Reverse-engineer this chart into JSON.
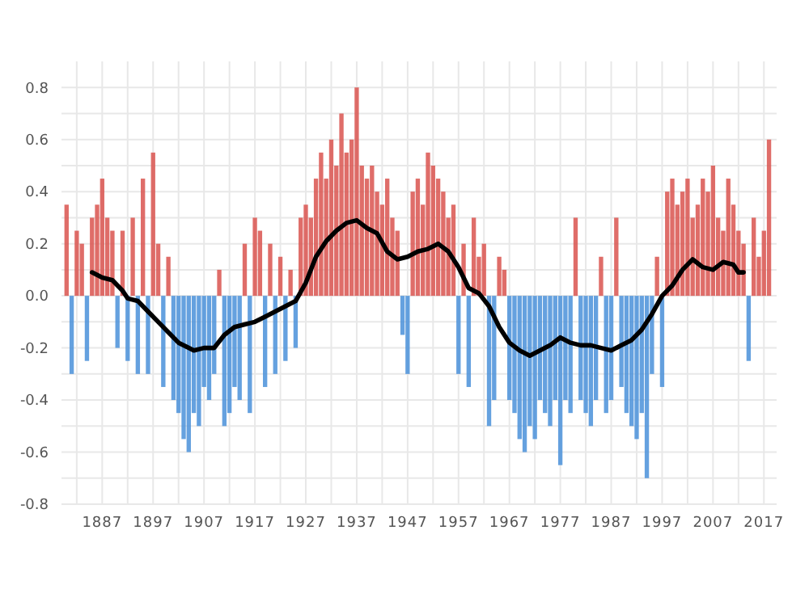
{
  "chart_data": {
    "type": "bar",
    "xlim": [
      1879,
      2019.5
    ],
    "ylim": [
      -0.8,
      0.9
    ],
    "xticks": [
      {
        "value": 1882,
        "label": null
      },
      1887,
      {
        "value": 1892,
        "label": null
      },
      1897,
      {
        "value": 1902,
        "label": null
      },
      1907,
      {
        "value": 1912,
        "label": null
      },
      1917,
      {
        "value": 1922,
        "label": null
      },
      1927,
      {
        "value": 1932,
        "label": null
      },
      1937,
      {
        "value": 1942,
        "label": null
      },
      1947,
      {
        "value": 1952,
        "label": null
      },
      1957,
      {
        "value": 1962,
        "label": null
      },
      1967,
      {
        "value": 1972,
        "label": null
      },
      1977,
      {
        "value": 1982,
        "label": null
      },
      1987,
      {
        "value": 1992,
        "label": null
      },
      1997,
      {
        "value": 2002,
        "label": null
      },
      2007,
      {
        "value": 2012,
        "label": null
      },
      2017
    ],
    "yticks": [
      -0.8,
      {
        "value": -0.7,
        "label": null
      },
      -0.6,
      {
        "value": -0.5,
        "label": null
      },
      -0.4,
      {
        "value": -0.3,
        "label": null
      },
      -0.2,
      {
        "value": -0.1,
        "label": null
      },
      {
        "value": 0,
        "label": "0.0"
      },
      {
        "value": 0.1,
        "label": null
      },
      0.2,
      {
        "value": 0.3,
        "label": null
      },
      0.4,
      {
        "value": 0.5,
        "label": null
      },
      0.6,
      {
        "value": 0.7,
        "label": null
      },
      0.8
    ],
    "grid": true,
    "series": [
      {
        "x": [
          1880,
          1881,
          1882,
          1883,
          1884,
          1885,
          1886,
          1887,
          1888,
          1889,
          1890,
          1891,
          1892,
          1893,
          1894,
          1895,
          1896,
          1897,
          1898,
          1899,
          1900,
          1901,
          1902,
          1903,
          1904,
          1905,
          1906,
          1907,
          1908,
          1909,
          1910,
          1911,
          1912,
          1913,
          1914,
          1915,
          1916,
          1917,
          1918,
          1919,
          1920,
          1921,
          1922,
          1923,
          1924,
          1925,
          1926,
          1927,
          1928,
          1929,
          1930,
          1931,
          1932,
          1933,
          1934,
          1935,
          1936,
          1937,
          1938,
          1939,
          1940,
          1941,
          1942,
          1943,
          1944,
          1945,
          1946,
          1947,
          1948,
          1949,
          1950,
          1951,
          1952,
          1953,
          1954,
          1955,
          1956,
          1957,
          1958,
          1959,
          1960,
          1961,
          1962,
          1963,
          1964,
          1965,
          1966,
          1967,
          1968,
          1969,
          1970,
          1971,
          1972,
          1973,
          1974,
          1975,
          1976,
          1977,
          1978,
          1979,
          1980,
          1981,
          1982,
          1983,
          1984,
          1985,
          1986,
          1987,
          1988,
          1989,
          1990,
          1991,
          1992,
          1993,
          1994,
          1995,
          1996,
          1997,
          1998,
          1999,
          2000,
          2001,
          2002,
          2003,
          2004,
          2005,
          2006,
          2007,
          2008,
          2009,
          2010,
          2011,
          2012,
          2013,
          2014,
          2015,
          2016,
          2017,
          2018
        ],
        "values": [
          0.35,
          -0.3,
          0.25,
          0.2,
          -0.25,
          0.3,
          0.35,
          0.45,
          0.3,
          0.25,
          -0.2,
          0.25,
          -0.25,
          0.3,
          -0.3,
          0.45,
          -0.3,
          0.55,
          0.2,
          -0.35,
          0.15,
          -0.4,
          -0.45,
          -0.55,
          -0.6,
          -0.45,
          -0.5,
          -0.35,
          -0.4,
          -0.3,
          0.1,
          -0.5,
          -0.45,
          -0.35,
          -0.4,
          0.2,
          -0.45,
          0.3,
          0.25,
          -0.35,
          0.2,
          -0.3,
          0.15,
          -0.25,
          0.1,
          -0.2,
          0.3,
          0.35,
          0.3,
          0.45,
          0.55,
          0.45,
          0.6,
          0.5,
          0.7,
          0.55,
          0.6,
          0.8,
          0.5,
          0.45,
          0.5,
          0.4,
          0.35,
          0.45,
          0.3,
          0.25,
          -0.15,
          -0.3,
          0.4,
          0.45,
          0.35,
          0.55,
          0.5,
          0.45,
          0.4,
          0.3,
          0.35,
          -0.3,
          0.2,
          -0.35,
          0.3,
          0.15,
          0.2,
          -0.5,
          -0.4,
          0.15,
          0.1,
          -0.4,
          -0.45,
          -0.55,
          -0.6,
          -0.5,
          -0.55,
          -0.4,
          -0.45,
          -0.5,
          -0.4,
          -0.65,
          -0.4,
          -0.45,
          0.3,
          -0.4,
          -0.45,
          -0.5,
          -0.4,
          0.15,
          -0.45,
          -0.4,
          0.3,
          -0.35,
          -0.45,
          -0.5,
          -0.55,
          -0.45,
          -0.7,
          -0.3,
          0.15,
          -0.35,
          0.4,
          0.45,
          0.35,
          0.4,
          0.45,
          0.3,
          0.35,
          0.45,
          0.4,
          0.5,
          0.3,
          0.25,
          0.45,
          0.35,
          0.25,
          0.2,
          -0.25,
          0.3,
          0.15,
          0.25,
          0.6
        ],
        "colors": [
          "#d9534f",
          "#4a90d9",
          "#d9534f",
          "#d9534f",
          "#4a90d9",
          "#d9534f",
          "#d9534f",
          "#d9534f",
          "#d9534f",
          "#d9534f",
          "#4a90d9",
          "#d9534f",
          "#4a90d9",
          "#d9534f",
          "#4a90d9",
          "#d9534f",
          "#4a90d9",
          "#d9534f",
          "#d9534f",
          "#4a90d9",
          "#d9534f",
          "#4a90d9",
          "#4a90d9",
          "#4a90d9",
          "#4a90d9",
          "#4a90d9",
          "#4a90d9",
          "#4a90d9",
          "#4a90d9",
          "#4a90d9",
          "#d9534f",
          "#4a90d9",
          "#4a90d9",
          "#4a90d9",
          "#4a90d9",
          "#d9534f",
          "#4a90d9",
          "#d9534f",
          "#d9534f",
          "#4a90d9",
          "#d9534f",
          "#4a90d9",
          "#d9534f",
          "#4a90d9",
          "#d9534f",
          "#4a90d9",
          "#d9534f",
          "#d9534f",
          "#d9534f",
          "#d9534f",
          "#d9534f",
          "#d9534f",
          "#d9534f",
          "#d9534f",
          "#d9534f",
          "#d9534f",
          "#d9534f",
          "#d9534f",
          "#d9534f",
          "#d9534f",
          "#d9534f",
          "#d9534f",
          "#d9534f",
          "#d9534f",
          "#d9534f",
          "#d9534f",
          "#4a90d9",
          "#4a90d9",
          "#d9534f",
          "#d9534f",
          "#d9534f",
          "#d9534f",
          "#d9534f",
          "#d9534f",
          "#d9534f",
          "#d9534f",
          "#d9534f",
          "#4a90d9",
          "#d9534f",
          "#4a90d9",
          "#d9534f",
          "#d9534f",
          "#d9534f",
          "#4a90d9",
          "#4a90d9",
          "#d9534f",
          "#d9534f",
          "#4a90d9",
          "#4a90d9",
          "#4a90d9",
          "#4a90d9",
          "#4a90d9",
          "#4a90d9",
          "#4a90d9",
          "#4a90d9",
          "#4a90d9",
          "#4a90d9",
          "#4a90d9",
          "#4a90d9",
          "#4a90d9",
          "#d9534f",
          "#4a90d9",
          "#4a90d9",
          "#4a90d9",
          "#4a90d9",
          "#d9534f",
          "#4a90d9",
          "#4a90d9",
          "#d9534f",
          "#4a90d9",
          "#4a90d9",
          "#4a90d9",
          "#4a90d9",
          "#4a90d9",
          "#4a90d9",
          "#4a90d9",
          "#d9534f",
          "#4a90d9",
          "#d9534f",
          "#d9534f",
          "#d9534f",
          "#d9534f",
          "#d9534f",
          "#d9534f",
          "#d9534f",
          "#d9534f",
          "#d9534f",
          "#d9534f",
          "#d9534f",
          "#d9534f",
          "#d9534f",
          "#d9534f",
          "#d9534f",
          "#d9534f",
          "#4a90d9",
          "#d9534f",
          "#d9534f",
          "#d9534f",
          "#d9534f"
        ]
      },
      {
        "type": "line",
        "color": "#000000",
        "x": [
          1885,
          1887,
          1889,
          1891,
          1892,
          1894,
          1896,
          1898,
          1900,
          1902,
          1904,
          1905,
          1907,
          1909,
          1911,
          1913,
          1915,
          1917,
          1919,
          1921,
          1923,
          1925,
          1927,
          1929,
          1931,
          1933,
          1935,
          1937,
          1939,
          1941,
          1943,
          1945,
          1947,
          1949,
          1951,
          1953,
          1955,
          1957,
          1959,
          1961,
          1963,
          1965,
          1967,
          1969,
          1971,
          1973,
          1975,
          1977,
          1979,
          1981,
          1983,
          1985,
          1987,
          1989,
          1991,
          1993,
          1995,
          1997,
          1999,
          2001,
          2003,
          2005,
          2007,
          2009,
          2011,
          2012,
          2013
        ],
        "values": [
          0.09,
          0.07,
          0.06,
          0.02,
          -0.01,
          -0.02,
          -0.06,
          -0.1,
          -0.14,
          -0.18,
          -0.2,
          -0.21,
          -0.2,
          -0.2,
          -0.15,
          -0.12,
          -0.11,
          -0.1,
          -0.08,
          -0.06,
          -0.04,
          -0.02,
          0.05,
          0.15,
          0.21,
          0.25,
          0.28,
          0.29,
          0.26,
          0.24,
          0.17,
          0.14,
          0.15,
          0.17,
          0.18,
          0.2,
          0.17,
          0.11,
          0.03,
          0.01,
          -0.04,
          -0.12,
          -0.18,
          -0.21,
          -0.23,
          -0.21,
          -0.19,
          -0.16,
          -0.18,
          -0.19,
          -0.19,
          -0.2,
          -0.21,
          -0.19,
          -0.17,
          -0.13,
          -0.07,
          0,
          0.04,
          0.1,
          0.14,
          0.11,
          0.1,
          0.13,
          0.12,
          0.09,
          0.09
        ]
      }
    ]
  }
}
